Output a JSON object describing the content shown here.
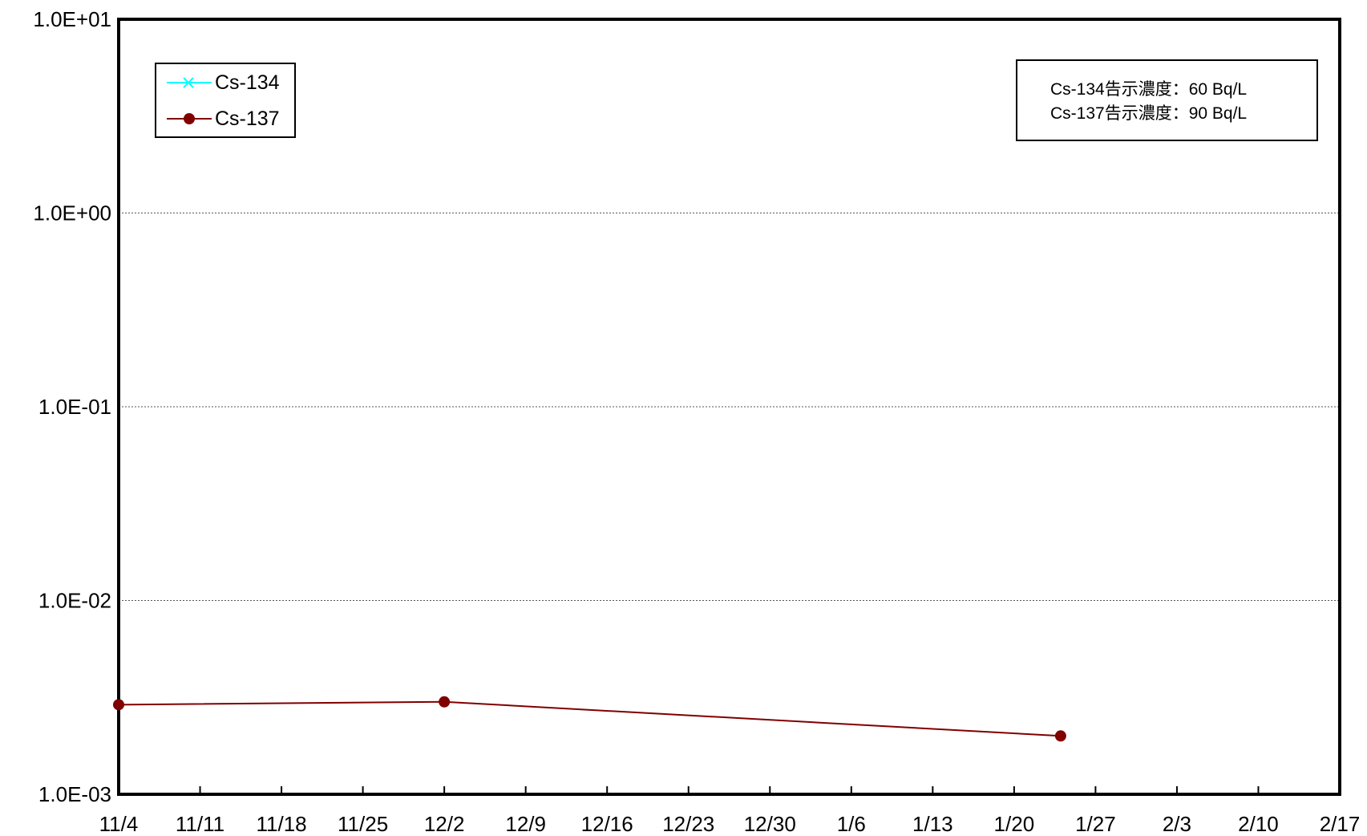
{
  "chart_data": {
    "type": "line",
    "y_scale": "log",
    "ylim": [
      0.001,
      10
    ],
    "y_ticks": [
      "1.0E+01",
      "1.0E+00",
      "1.0E-01",
      "1.0E-02",
      "1.0E-03"
    ],
    "x_ticks": [
      "11/4",
      "11/11",
      "11/18",
      "11/25",
      "12/2",
      "12/9",
      "12/16",
      "12/23",
      "12/30",
      "1/6",
      "1/13",
      "1/20",
      "1/27",
      "2/3",
      "2/10",
      "2/17"
    ],
    "grid": "horizontal dotted at each decade",
    "legend_position": "top-left",
    "series": [
      {
        "name": "Cs-134",
        "color": "#00FFFF",
        "marker": "x",
        "points": []
      },
      {
        "name": "Cs-137",
        "color": "#800000",
        "marker": "circle",
        "points": [
          {
            "x": "11/4",
            "y": 0.0029
          },
          {
            "x": "12/2",
            "y": 0.003
          },
          {
            "x": "1/24",
            "y": 0.002
          }
        ]
      }
    ],
    "annotation": {
      "line1": "Cs-134告示濃度：60  Bq/L",
      "line2": "Cs-137告示濃度：90  Bq/L"
    }
  }
}
